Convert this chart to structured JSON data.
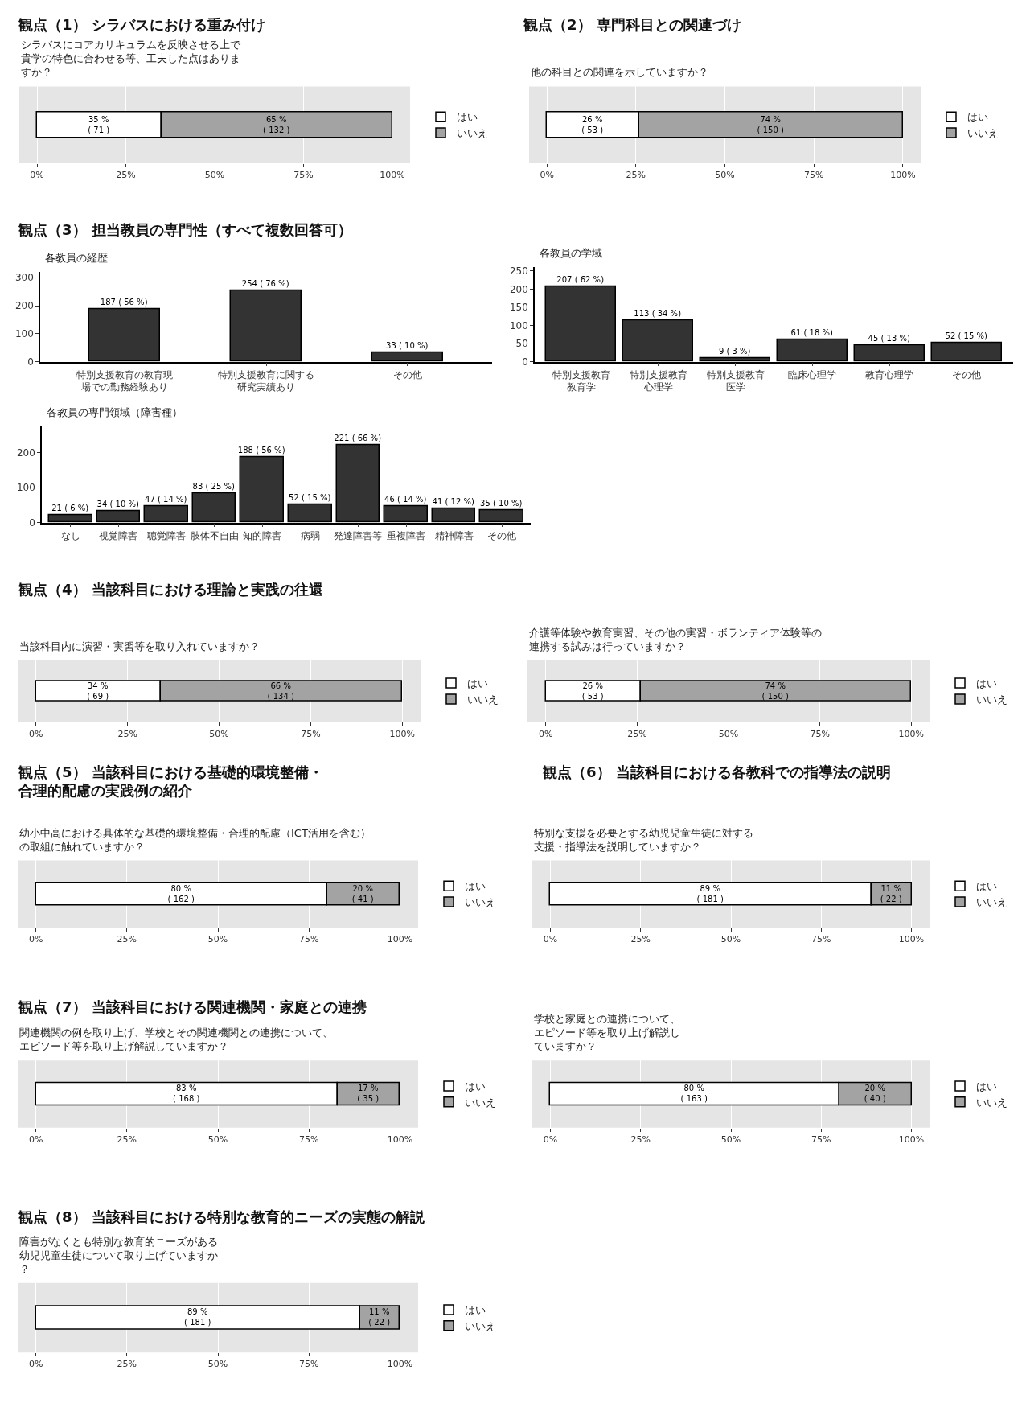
{
  "chart_data": [
    {
      "type": "bar",
      "title": "観点（1） シラバスにおける重み付け",
      "subtitle": "シラバスにコアカリキュラムを反映させる上で貴学の特色に合わせる等、工夫した点はありますか？",
      "orientation": "horizontal",
      "stacked": true,
      "categories": [
        null
      ],
      "xlim": [
        -5,
        105
      ],
      "xticks": [
        {
          "value": 0,
          "label": "0%"
        },
        {
          "value": 25,
          "label": "25%"
        },
        {
          "value": 50,
          "label": "50%"
        },
        {
          "value": 75,
          "label": "75%"
        },
        {
          "value": 100,
          "label": "100%"
        }
      ],
      "grid": "x",
      "legend": "right",
      "series": [
        {
          "name": "はい",
          "color": "#ffffff",
          "values": [
            35
          ],
          "value_labels": [
            "35 %\n( 71 )"
          ]
        },
        {
          "name": "いいえ",
          "color": "#a3a3a3",
          "values": [
            65
          ],
          "value_labels": [
            "65 %\n( 132 )"
          ]
        }
      ]
    },
    {
      "type": "bar",
      "title": "観点（2） 専門科目との関連づけ",
      "subtitle": "他の科目との関連を示していますか？",
      "orientation": "horizontal",
      "stacked": true,
      "categories": [
        null
      ],
      "xlim": [
        -5,
        105
      ],
      "xticks": [
        {
          "value": 0,
          "label": "0%"
        },
        {
          "value": 25,
          "label": "25%"
        },
        {
          "value": 50,
          "label": "50%"
        },
        {
          "value": 75,
          "label": "75%"
        },
        {
          "value": 100,
          "label": "100%"
        }
      ],
      "grid": "x",
      "legend": "right",
      "series": [
        {
          "name": "はい",
          "color": "#ffffff",
          "values": [
            26
          ],
          "value_labels": [
            "26 %\n( 53 )"
          ]
        },
        {
          "name": "いいえ",
          "color": "#a3a3a3",
          "values": [
            74
          ],
          "value_labels": [
            "74 %\n( 150 )"
          ]
        }
      ]
    },
    {
      "type": "bar",
      "title": "観点（3） 担当教員の専門性（すべて複数回答可）",
      "subtitle": "各教員の経歴",
      "categories": [
        "特別支援教育の教育現場での勤務経験あり",
        "特別支援教育に関する研究実績あり",
        "その他"
      ],
      "values": [
        187,
        254,
        33
      ],
      "value_labels": [
        "187 ( 56 %)",
        "254 ( 76 %)",
        "33 ( 10 %)"
      ],
      "color": "#333333",
      "ylim": [
        0,
        320
      ],
      "yticks": [
        0,
        100,
        200,
        300
      ]
    },
    {
      "type": "bar",
      "subtitle": "各教員の学域",
      "categories": [
        "特別支援教育教育学",
        "特別支援教育心理学",
        "特別支援教育医学",
        "臨床心理学",
        "教育心理学",
        "その他"
      ],
      "values": [
        207,
        113,
        9,
        61,
        45,
        52
      ],
      "value_labels": [
        "207 ( 62 %)",
        "113 ( 34 %)",
        "9 ( 3 %)",
        "61 ( 18 %)",
        "45 ( 13 %)",
        "52 ( 15 %)"
      ],
      "color": "#333333",
      "ylim": [
        0,
        260
      ],
      "yticks": [
        0,
        50,
        100,
        150,
        200,
        250
      ]
    },
    {
      "type": "bar",
      "subtitle": "各教員の専門領域（障害種）",
      "categories": [
        "なし",
        "視覚障害",
        "聴覚障害",
        "肢体不自由",
        "知的障害",
        "病弱",
        "発達障害等",
        "重複障害",
        "精神障害",
        "その他"
      ],
      "values": [
        21,
        34,
        47,
        83,
        188,
        52,
        221,
        46,
        41,
        35
      ],
      "value_labels": [
        "21 ( 6 %)",
        "34 ( 10 %)",
        "47 ( 14 %)",
        "83 ( 25 %)",
        "188 ( 56 %)",
        "52 ( 15 %)",
        "221 ( 66 %)",
        "46 ( 14 %)",
        "41 ( 12 %)",
        "35 ( 10 %)"
      ],
      "color": "#333333",
      "ylim": [
        0,
        275
      ],
      "yticks": [
        0,
        100,
        200
      ]
    },
    {
      "type": "bar",
      "title": "観点（4） 当該科目における理論と実践の往還",
      "subtitle": "当該科目内に演習・実習等を取り入れていますか？",
      "orientation": "horizontal",
      "stacked": true,
      "categories": [
        null
      ],
      "xlim": [
        -5,
        105
      ],
      "xticks": [
        {
          "value": 0,
          "label": "0%"
        },
        {
          "value": 25,
          "label": "25%"
        },
        {
          "value": 50,
          "label": "50%"
        },
        {
          "value": 75,
          "label": "75%"
        },
        {
          "value": 100,
          "label": "100%"
        }
      ],
      "grid": "x",
      "legend": "right",
      "series": [
        {
          "name": "はい",
          "color": "#ffffff",
          "values": [
            34
          ],
          "value_labels": [
            "34 %\n( 69 )"
          ]
        },
        {
          "name": "いいえ",
          "color": "#a3a3a3",
          "values": [
            66
          ],
          "value_labels": [
            "66 %\n( 134 )"
          ]
        }
      ]
    },
    {
      "type": "bar",
      "subtitle": "介護等体験や教育実習、その他の実習・ボランティア体験等の連携する試みは行っていますか？",
      "orientation": "horizontal",
      "stacked": true,
      "categories": [
        null
      ],
      "xlim": [
        -5,
        105
      ],
      "xticks": [
        {
          "value": 0,
          "label": "0%"
        },
        {
          "value": 25,
          "label": "25%"
        },
        {
          "value": 50,
          "label": "50%"
        },
        {
          "value": 75,
          "label": "75%"
        },
        {
          "value": 100,
          "label": "100%"
        }
      ],
      "grid": "x",
      "legend": "right",
      "series": [
        {
          "name": "はい",
          "color": "#ffffff",
          "values": [
            26
          ],
          "value_labels": [
            "26 %\n( 53 )"
          ]
        },
        {
          "name": "いいえ",
          "color": "#a3a3a3",
          "values": [
            74
          ],
          "value_labels": [
            "74 %\n( 150 )"
          ]
        }
      ]
    },
    {
      "type": "bar",
      "title": "観点（5） 当該科目における基礎的環境整備・合理的配慮の実践例の紹介",
      "subtitle": "幼小中高における具体的な基礎的環境整備・合理的配慮（ICT活用を含む）の取組に触れていますか？",
      "orientation": "horizontal",
      "stacked": true,
      "categories": [
        null
      ],
      "xlim": [
        -5,
        105
      ],
      "xticks": [
        {
          "value": 0,
          "label": "0%"
        },
        {
          "value": 25,
          "label": "25%"
        },
        {
          "value": 50,
          "label": "50%"
        },
        {
          "value": 75,
          "label": "75%"
        },
        {
          "value": 100,
          "label": "100%"
        }
      ],
      "grid": "x",
      "legend": "right",
      "series": [
        {
          "name": "はい",
          "color": "#ffffff",
          "values": [
            80
          ],
          "value_labels": [
            "80 %\n( 162 )"
          ]
        },
        {
          "name": "いいえ",
          "color": "#a3a3a3",
          "values": [
            20
          ],
          "value_labels": [
            "20 %\n( 41 )"
          ]
        }
      ]
    },
    {
      "type": "bar",
      "title": "観点（6） 当該科目における各教科での指導法の説明",
      "subtitle": "特別な支援を必要とする幼児児童生徒に対する支援・指導法を説明していますか？",
      "orientation": "horizontal",
      "stacked": true,
      "categories": [
        null
      ],
      "xlim": [
        -5,
        105
      ],
      "xticks": [
        {
          "value": 0,
          "label": "0%"
        },
        {
          "value": 25,
          "label": "25%"
        },
        {
          "value": 50,
          "label": "50%"
        },
        {
          "value": 75,
          "label": "75%"
        },
        {
          "value": 100,
          "label": "100%"
        }
      ],
      "grid": "x",
      "legend": "right",
      "series": [
        {
          "name": "はい",
          "color": "#ffffff",
          "values": [
            89
          ],
          "value_labels": [
            "89 %\n( 181 )"
          ]
        },
        {
          "name": "いいえ",
          "color": "#a3a3a3",
          "values": [
            11
          ],
          "value_labels": [
            "11 %\n( 22 )"
          ]
        }
      ]
    },
    {
      "type": "bar",
      "title": "観点（7） 当該科目における関連機関・家庭との連携",
      "subtitle": "関連機関の例を取り上げ、学校とその関連機関との連携について、エピソード等を取り上げ解説していますか？",
      "orientation": "horizontal",
      "stacked": true,
      "categories": [
        null
      ],
      "xlim": [
        -5,
        105
      ],
      "xticks": [
        {
          "value": 0,
          "label": "0%"
        },
        {
          "value": 25,
          "label": "25%"
        },
        {
          "value": 50,
          "label": "50%"
        },
        {
          "value": 75,
          "label": "75%"
        },
        {
          "value": 100,
          "label": "100%"
        }
      ],
      "grid": "x",
      "legend": "right",
      "series": [
        {
          "name": "はい",
          "color": "#ffffff",
          "values": [
            83
          ],
          "value_labels": [
            "83 %\n( 168 )"
          ]
        },
        {
          "name": "いいえ",
          "color": "#a3a3a3",
          "values": [
            17
          ],
          "value_labels": [
            "17 %\n( 35 )"
          ]
        }
      ]
    },
    {
      "type": "bar",
      "subtitle": "学校と家庭との連携について、エピソード等を取り上げ解説していますか？",
      "orientation": "horizontal",
      "stacked": true,
      "categories": [
        null
      ],
      "xlim": [
        -5,
        105
      ],
      "xticks": [
        {
          "value": 0,
          "label": "0%"
        },
        {
          "value": 25,
          "label": "25%"
        },
        {
          "value": 50,
          "label": "50%"
        },
        {
          "value": 75,
          "label": "75%"
        },
        {
          "value": 100,
          "label": "100%"
        }
      ],
      "grid": "x",
      "legend": "right",
      "series": [
        {
          "name": "はい",
          "color": "#ffffff",
          "values": [
            80
          ],
          "value_labels": [
            "80 %\n( 163 )"
          ]
        },
        {
          "name": "いいえ",
          "color": "#a3a3a3",
          "values": [
            20
          ],
          "value_labels": [
            "20 %\n( 40 )"
          ]
        }
      ]
    },
    {
      "type": "bar",
      "title": "観点（8） 当該科目における特別な教育的ニーズの実態の解説",
      "subtitle": "障害がなくとも特別な教育的ニーズがある幼児児童生徒について取り上げていますか？",
      "orientation": "horizontal",
      "stacked": true,
      "categories": [
        null
      ],
      "xlim": [
        -5,
        105
      ],
      "xticks": [
        {
          "value": 0,
          "label": "0%"
        },
        {
          "value": 25,
          "label": "25%"
        },
        {
          "value": 50,
          "label": "50%"
        },
        {
          "value": 75,
          "label": "75%"
        },
        {
          "value": 100,
          "label": "100%"
        }
      ],
      "grid": "x",
      "legend": "right",
      "series": [
        {
          "name": "はい",
          "color": "#ffffff",
          "values": [
            89
          ],
          "value_labels": [
            "89 %\n( 181 )"
          ]
        },
        {
          "name": "いいえ",
          "color": "#a3a3a3",
          "values": [
            11
          ],
          "value_labels": [
            "11 %\n( 22 )"
          ]
        }
      ]
    }
  ]
}
